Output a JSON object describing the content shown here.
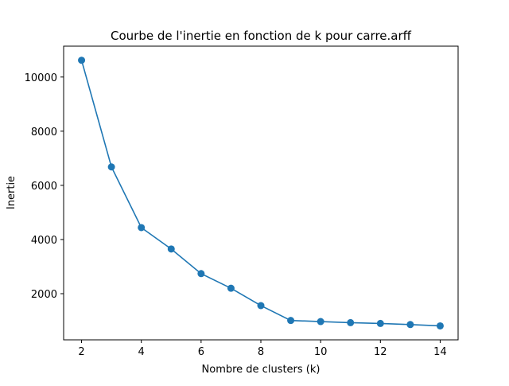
{
  "chart_data": {
    "type": "line",
    "title": "Courbe de l'inertie en fonction de k pour carre.arff",
    "xlabel": "Nombre de clusters (k)",
    "ylabel": "Inertie",
    "x": [
      2,
      3,
      4,
      5,
      6,
      7,
      8,
      9,
      10,
      11,
      12,
      13,
      14
    ],
    "series": [
      {
        "values": [
          10620,
          6680,
          4440,
          3650,
          2740,
          2200,
          1560,
          1010,
          970,
          930,
          900,
          860,
          810
        ],
        "color": "#1f77b4",
        "marker": "circle"
      }
    ],
    "xlim": [
      1.4,
      14.6
    ],
    "ylim": [
      295,
      11140
    ],
    "xticks": [
      2,
      4,
      6,
      8,
      10,
      12,
      14
    ],
    "xtick_labels": [
      "2",
      "4",
      "6",
      "8",
      "10",
      "12",
      "14"
    ],
    "yticks": [
      2000,
      4000,
      6000,
      8000,
      10000
    ],
    "ytick_labels": [
      "2000",
      "4000",
      "6000",
      "8000",
      "10000"
    ],
    "grid": false,
    "legend": false
  }
}
